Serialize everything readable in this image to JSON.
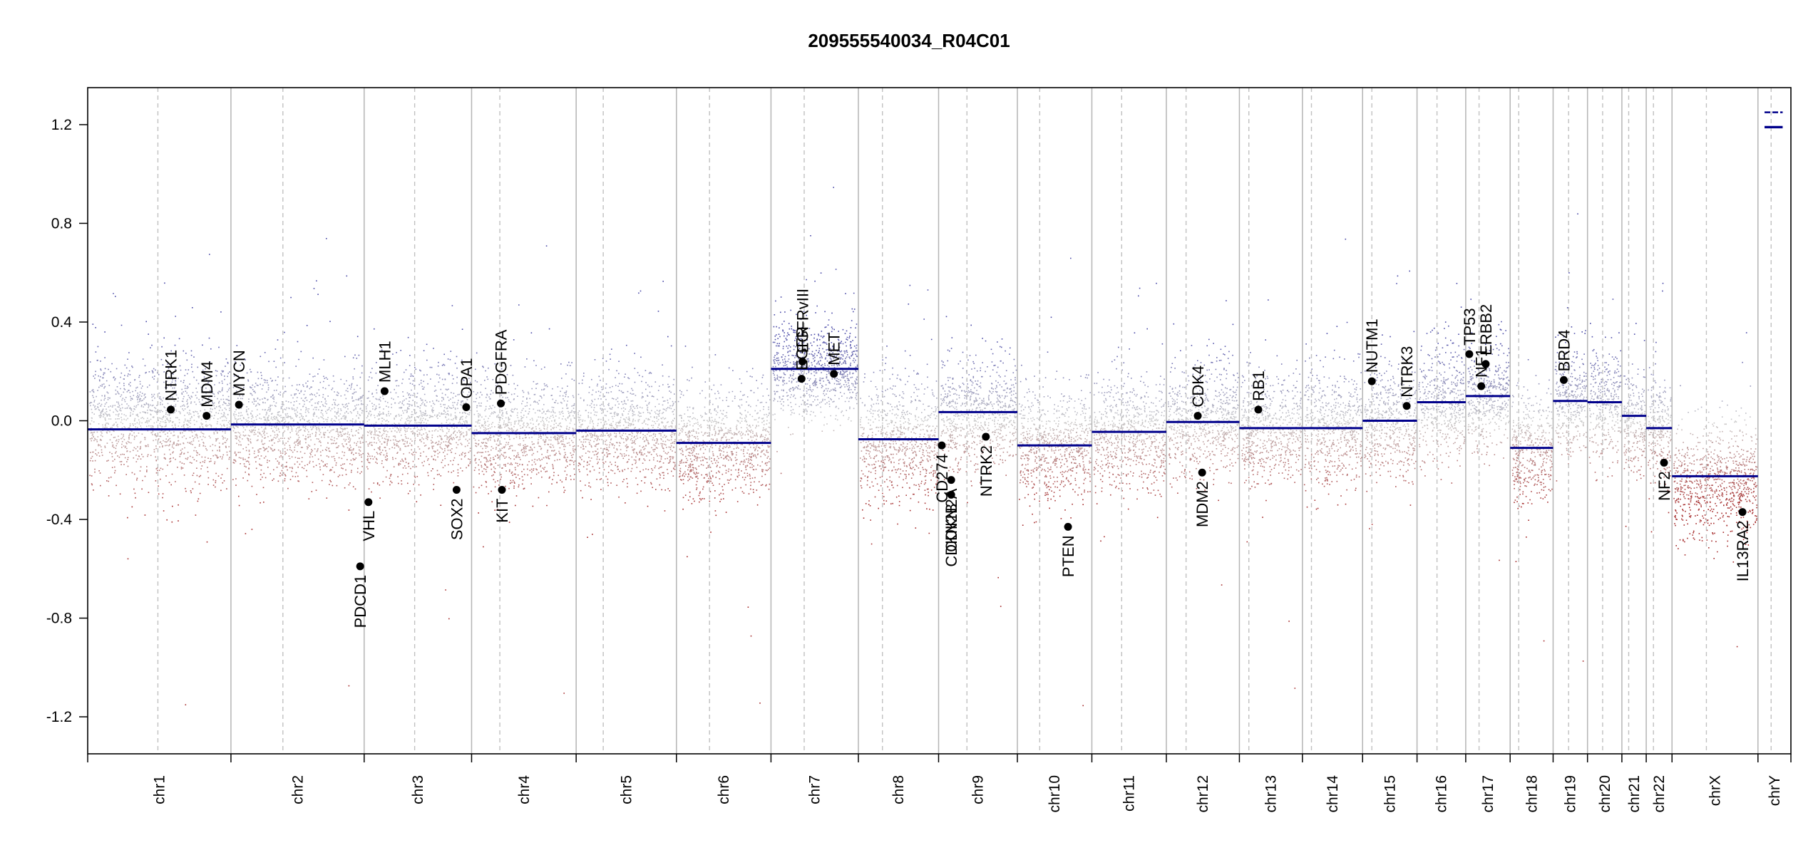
{
  "chart_data": {
    "type": "scatter",
    "title": "209555540034_R04C01",
    "xlabel": "",
    "ylabel": "",
    "ylim": [
      -1.35,
      1.35
    ],
    "yticks": [
      {
        "value": 1.2,
        "label": "1.2"
      },
      {
        "value": 0.8,
        "label": "0.8"
      },
      {
        "value": 0.4,
        "label": "0.4"
      },
      {
        "value": 0.0,
        "label": "0.0"
      },
      {
        "value": -0.4,
        "label": "-0.4"
      },
      {
        "value": -0.8,
        "label": "-0.8"
      },
      {
        "value": -1.2,
        "label": "-1.2"
      }
    ],
    "grid": false,
    "chromosome_band_widths": [
      1.0,
      0.93,
      0.75,
      0.73,
      0.7,
      0.66,
      0.61,
      0.56,
      0.55,
      0.52,
      0.52,
      0.51,
      0.44,
      0.42,
      0.38,
      0.34,
      0.31,
      0.3,
      0.24,
      0.24,
      0.17,
      0.18,
      0.6,
      0.23
    ],
    "chromosomes": [
      {
        "label": "chr1",
        "centromere": 0.49,
        "segment_value": -0.035,
        "point_mean": 0.0,
        "point_spread": 0.22
      },
      {
        "label": "chr2",
        "centromere": 0.39,
        "segment_value": -0.015,
        "point_mean": -0.02,
        "point_spread": 0.2
      },
      {
        "label": "chr3",
        "centromere": 0.47,
        "segment_value": -0.02,
        "point_mean": -0.02,
        "point_spread": 0.2
      },
      {
        "label": "chr4",
        "centromere": 0.27,
        "segment_value": -0.05,
        "point_mean": -0.05,
        "point_spread": 0.2
      },
      {
        "label": "chr5",
        "centromere": 0.27,
        "segment_value": -0.04,
        "point_mean": -0.04,
        "point_spread": 0.19
      },
      {
        "label": "chr6",
        "centromere": 0.35,
        "segment_value": -0.09,
        "point_mean": -0.09,
        "point_spread": 0.2
      },
      {
        "label": "chr7",
        "centromere": 0.38,
        "segment_value": 0.21,
        "point_mean": 0.21,
        "point_spread": 0.17
      },
      {
        "label": "chr8",
        "centromere": 0.3,
        "segment_value": -0.075,
        "point_mean": -0.08,
        "point_spread": 0.22
      },
      {
        "label": "chr9",
        "centromere": 0.36,
        "segment_value": 0.035,
        "point_mean": 0.03,
        "point_spread": 0.2
      },
      {
        "label": "chr10",
        "centromere": 0.3,
        "segment_value": -0.1,
        "point_mean": -0.1,
        "point_spread": 0.2
      },
      {
        "label": "chr11",
        "centromere": 0.4,
        "segment_value": -0.045,
        "point_mean": -0.05,
        "point_spread": 0.2
      },
      {
        "label": "chr12",
        "centromere": 0.27,
        "segment_value": -0.005,
        "point_mean": 0.0,
        "point_spread": 0.2
      },
      {
        "label": "chr13",
        "centromere": 0.15,
        "segment_value": -0.03,
        "point_mean": -0.03,
        "point_spread": 0.2
      },
      {
        "label": "chr14",
        "centromere": 0.15,
        "segment_value": -0.03,
        "point_mean": -0.03,
        "point_spread": 0.21
      },
      {
        "label": "chr15",
        "centromere": 0.17,
        "segment_value": 0.0,
        "point_mean": 0.0,
        "point_spread": 0.2
      },
      {
        "label": "chr16",
        "centromere": 0.41,
        "segment_value": 0.075,
        "point_mean": 0.07,
        "point_spread": 0.2
      },
      {
        "label": "chr17",
        "centromere": 0.3,
        "segment_value": 0.1,
        "point_mean": 0.1,
        "point_spread": 0.2
      },
      {
        "label": "chr18",
        "centromere": 0.2,
        "segment_value": -0.11,
        "point_mean": -0.11,
        "point_spread": 0.2
      },
      {
        "label": "chr19",
        "centromere": 0.45,
        "segment_value": 0.08,
        "point_mean": 0.08,
        "point_spread": 0.2
      },
      {
        "label": "chr20",
        "centromere": 0.44,
        "segment_value": 0.075,
        "point_mean": 0.07,
        "point_spread": 0.2
      },
      {
        "label": "chr21",
        "centromere": 0.28,
        "segment_value": 0.02,
        "point_mean": 0.0,
        "point_spread": 0.18
      },
      {
        "label": "chr22",
        "centromere": 0.28,
        "segment_value": -0.03,
        "point_mean": -0.03,
        "point_spread": 0.2
      },
      {
        "label": "chrX",
        "centromere": 0.4,
        "segment_value": -0.225,
        "point_mean": -0.25,
        "point_spread": 0.2
      },
      {
        "label": "chrY",
        "centromere": 0.4,
        "segment_value": 1.19,
        "point_mean": 1.2,
        "point_spread": 0.0
      }
    ],
    "extra_segments": [
      {
        "chromosome": "chrY",
        "x_start": 0.2,
        "x_end": 0.75,
        "value": 1.25,
        "dashed": true
      }
    ],
    "genes": [
      {
        "name": "NTRK1",
        "chromosome": "chr1",
        "position": 0.58,
        "value": 0.045,
        "label_side": "above"
      },
      {
        "name": "MDM4",
        "chromosome": "chr1",
        "position": 0.83,
        "value": 0.02,
        "label_side": "above"
      },
      {
        "name": "MYCN",
        "chromosome": "chr2",
        "position": 0.06,
        "value": 0.065,
        "label_side": "above"
      },
      {
        "name": "VHL",
        "chromosome": "chr3",
        "position": 0.04,
        "value": -0.33,
        "label_side": "below"
      },
      {
        "name": "MLH1",
        "chromosome": "chr3",
        "position": 0.19,
        "value": 0.12,
        "label_side": "above"
      },
      {
        "name": "PDCD1",
        "chromosome": "chr2",
        "position": 0.97,
        "value": -0.59,
        "label_side": "below"
      },
      {
        "name": "SOX2",
        "chromosome": "chr3",
        "position": 0.86,
        "value": -0.28,
        "label_side": "below"
      },
      {
        "name": "OPA1",
        "chromosome": "chr3",
        "position": 0.95,
        "value": 0.055,
        "label_side": "above"
      },
      {
        "name": "KIT",
        "chromosome": "chr4",
        "position": 0.29,
        "value": -0.28,
        "label_side": "below"
      },
      {
        "name": "PDGFRA",
        "chromosome": "chr4",
        "position": 0.28,
        "value": 0.07,
        "label_side": "above"
      },
      {
        "name": "EGFRvIII",
        "chromosome": "chr7",
        "position": 0.36,
        "value": 0.24,
        "label_side": "above"
      },
      {
        "name": "EGFR",
        "chromosome": "chr7",
        "position": 0.35,
        "value": 0.17,
        "label_side": "above"
      },
      {
        "name": "MET",
        "chromosome": "chr7",
        "position": 0.72,
        "value": 0.19,
        "label_side": "above"
      },
      {
        "name": "CD274",
        "chromosome": "chr9",
        "position": 0.04,
        "value": -0.1,
        "label_side": "below"
      },
      {
        "name": "CDKN2A",
        "chromosome": "chr9",
        "position": 0.16,
        "value": -0.24,
        "label_side": "below"
      },
      {
        "name": "CDKN2B",
        "chromosome": "chr9",
        "position": 0.16,
        "value": -0.3,
        "label_side": "below"
      },
      {
        "name": "NTRK2",
        "chromosome": "chr9",
        "position": 0.6,
        "value": -0.065,
        "label_side": "below"
      },
      {
        "name": "PTEN",
        "chromosome": "chr10",
        "position": 0.68,
        "value": -0.43,
        "label_side": "below"
      },
      {
        "name": "CDK4",
        "chromosome": "chr12",
        "position": 0.43,
        "value": 0.02,
        "label_side": "above"
      },
      {
        "name": "MDM2",
        "chromosome": "chr12",
        "position": 0.49,
        "value": -0.21,
        "label_side": "below"
      },
      {
        "name": "RB1",
        "chromosome": "chr13",
        "position": 0.3,
        "value": 0.045,
        "label_side": "above"
      },
      {
        "name": "NUTM1",
        "chromosome": "chr15",
        "position": 0.17,
        "value": 0.16,
        "label_side": "above"
      },
      {
        "name": "NTRK3",
        "chromosome": "chr15",
        "position": 0.81,
        "value": 0.06,
        "label_side": "above"
      },
      {
        "name": "TP53",
        "chromosome": "chr17",
        "position": 0.08,
        "value": 0.27,
        "label_side": "above"
      },
      {
        "name": "NF1",
        "chromosome": "chr17",
        "position": 0.35,
        "value": 0.14,
        "label_side": "above"
      },
      {
        "name": "ERBB2",
        "chromosome": "chr17",
        "position": 0.45,
        "value": 0.23,
        "label_side": "above"
      },
      {
        "name": "BRD4",
        "chromosome": "chr19",
        "position": 0.31,
        "value": 0.165,
        "label_side": "above"
      },
      {
        "name": "NF2",
        "chromosome": "chr22",
        "position": 0.69,
        "value": -0.17,
        "label_side": "below"
      },
      {
        "name": "IL13RA2",
        "chromosome": "chrX",
        "position": 0.82,
        "value": -0.37,
        "label_side": "below"
      }
    ],
    "colors": {
      "segment": "#00008b",
      "gain_points": "#4a4aa8",
      "loss_points": "#a52a2a",
      "neutral_points": "#c8c8c8",
      "chromosome_divider": "#b4b4b4",
      "centromere_line": "#c0c0c0",
      "gene_marker": "#000000"
    }
  }
}
